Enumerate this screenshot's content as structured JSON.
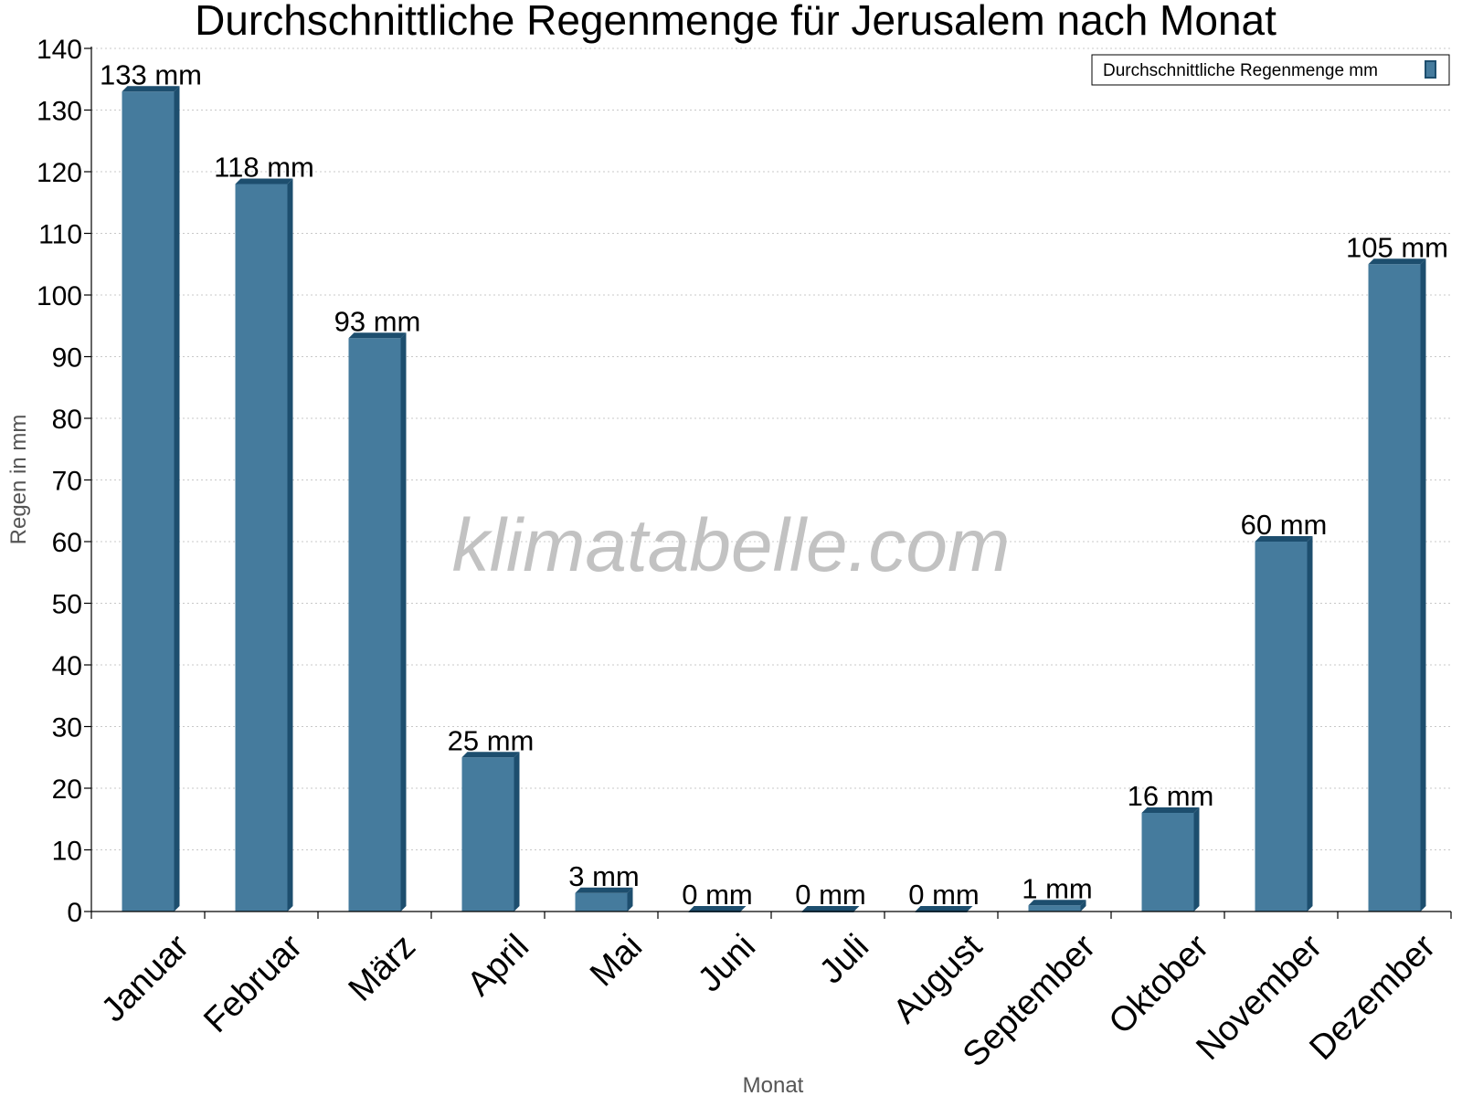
{
  "chart_data": {
    "type": "bar",
    "title": "Durchschnittliche Regenmenge für Jerusalem nach Monat",
    "xlabel": "Monat",
    "ylabel": "Regen in mm",
    "ylim": [
      0,
      140
    ],
    "yticks": [
      0,
      10,
      20,
      30,
      40,
      50,
      60,
      70,
      80,
      90,
      100,
      110,
      120,
      130,
      140
    ],
    "grid": true,
    "legend_position": "top-right",
    "categories": [
      "Januar",
      "Februar",
      "März",
      "April",
      "Mai",
      "Juni",
      "Juli",
      "August",
      "September",
      "Oktober",
      "November",
      "Dezember"
    ],
    "series": [
      {
        "name": "Durchschnittliche Regenmenge mm",
        "values": [
          133,
          118,
          93,
          25,
          3,
          0,
          0,
          0,
          1,
          16,
          60,
          105
        ],
        "labels": [
          "133 mm",
          "118 mm",
          "93 mm",
          "25 mm",
          "3 mm",
          "0 mm",
          "0 mm",
          "0 mm",
          "1 mm",
          "16 mm",
          "60 mm",
          "105 mm"
        ],
        "color": "#457b9d",
        "edge_color": "#1d4e6e"
      }
    ]
  },
  "watermark": "klimatabelle.com"
}
